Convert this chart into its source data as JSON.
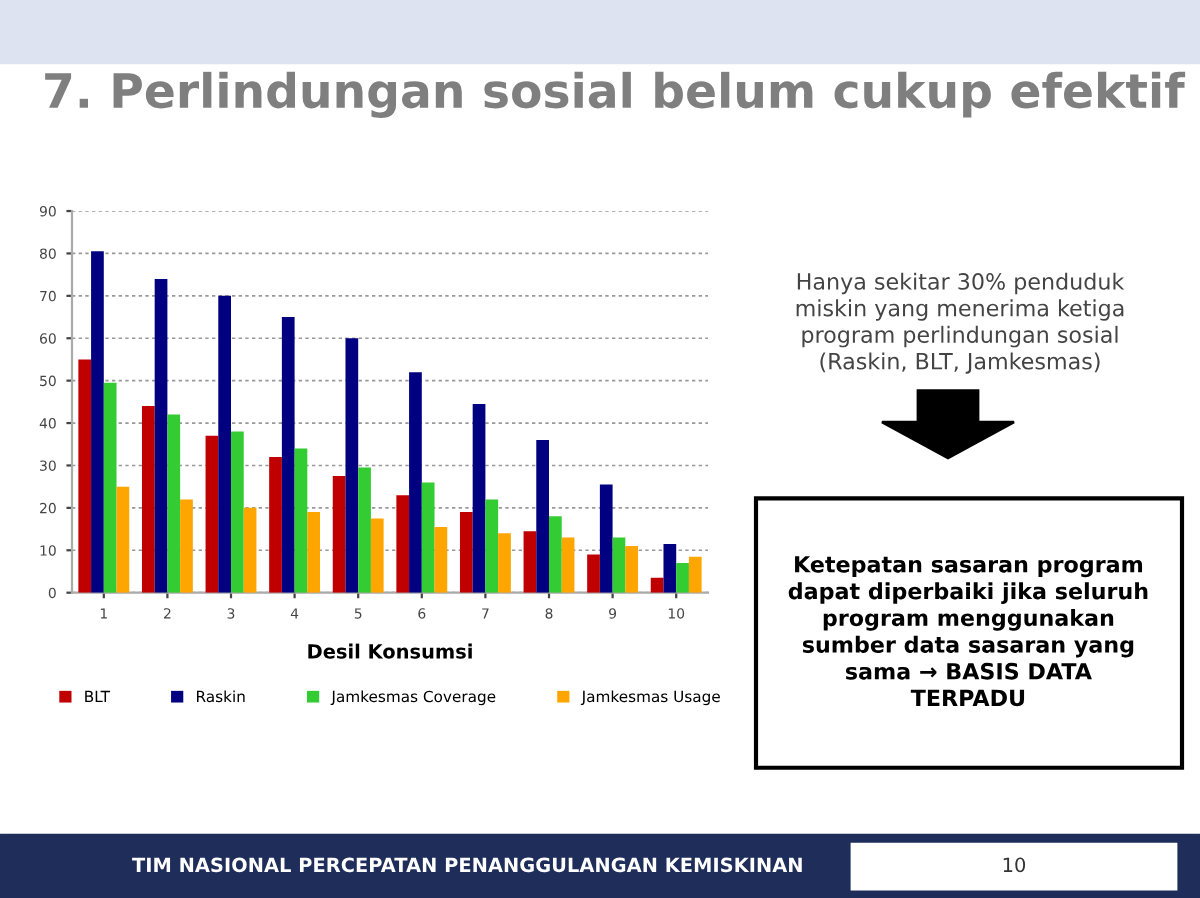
{
  "chart_data": {
    "type": "bar",
    "title": "7. Perlindungan sosial belum cukup efektif",
    "xlabel": "Desil Konsumsi",
    "categories": [
      "1",
      "2",
      "3",
      "4",
      "5",
      "6",
      "7",
      "8",
      "9",
      "10"
    ],
    "series": [
      {
        "name": "BLT",
        "color": "#c00000",
        "values": [
          55,
          44,
          37,
          32,
          27.5,
          23,
          19,
          14.5,
          9,
          3.5
        ]
      },
      {
        "name": "Raskin",
        "color": "#000080",
        "values": [
          80.5,
          74,
          70,
          65,
          60,
          52,
          44.5,
          36,
          25.5,
          11.5
        ]
      },
      {
        "name": "Jamkesmas Coverage",
        "color": "#33cc33",
        "values": [
          49.5,
          42,
          38,
          34,
          29.5,
          26,
          22,
          18,
          13,
          7
        ]
      },
      {
        "name": "Jamkesmas Usage",
        "color": "#ffa500",
        "values": [
          25,
          22,
          20,
          19,
          17.5,
          15.5,
          14,
          13,
          11,
          8.5
        ]
      }
    ],
    "ylim": [
      0,
      90
    ],
    "yticks": [
      0,
      10,
      20,
      30,
      40,
      50,
      60,
      70,
      80,
      90
    ],
    "grid": "y",
    "legend": "bottom",
    "annotations": [
      "Hanya sekitar 30% penduduk miskin yang menerima ketiga program perlindungan sosial (Raskin, BLT, Jamkesmas)",
      "Ketepatan sasaran program dapat diperbaiki jika seluruh program menggunakan sumber data sasaran yang sama → BASIS DATA TERPADU",
      "TIM NASIONAL PERCEPATAN PENANGGULANGAN KEMISKINAN",
      "10"
    ]
  }
}
